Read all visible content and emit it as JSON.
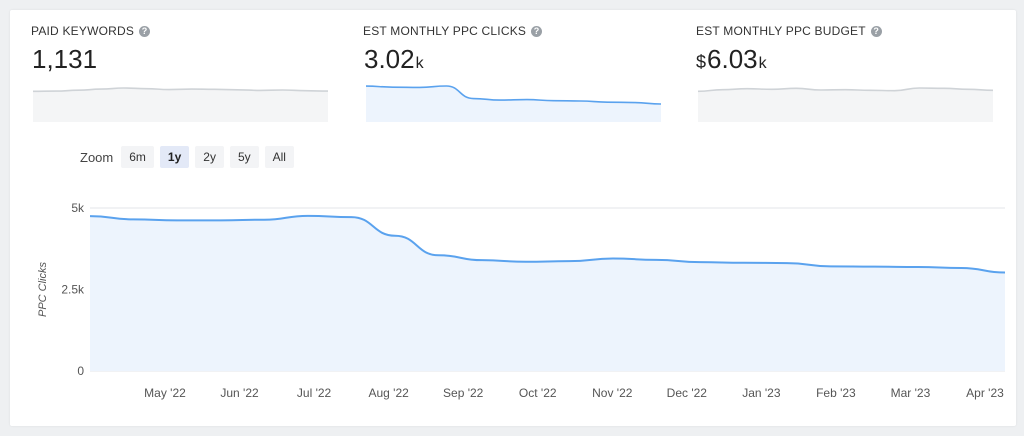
{
  "kpis": [
    {
      "label": "PAID KEYWORDS",
      "prefix": "",
      "value": "1,131",
      "suffix": ""
    },
    {
      "label": "EST MONTHLY PPC CLICKS",
      "prefix": "",
      "value": "3.02",
      "suffix": "k"
    },
    {
      "label": "EST MONTHLY PPC BUDGET",
      "prefix": "$",
      "value": "6.03",
      "suffix": "k"
    }
  ],
  "help_glyph": "?",
  "zoom": {
    "label": "Zoom",
    "options": [
      "6m",
      "1y",
      "2y",
      "5y",
      "All"
    ],
    "selected": "1y"
  },
  "colors": {
    "accent": "#5aa2ee",
    "area_fill": "#edf4fd",
    "grid": "#e3e6ea",
    "spark_gray": "#cfd3d7",
    "spark_area": "#f4f5f6"
  },
  "chart_data": {
    "type": "area",
    "ylabel": "PPC Clicks",
    "yticks": [
      "0",
      "2.5k",
      "5k"
    ],
    "ylim": [
      0,
      5000
    ],
    "grid": true,
    "x_tick_labels": [
      "May '22",
      "Jun '22",
      "Jul '22",
      "Aug '22",
      "Sep '22",
      "Oct '22",
      "Nov '22",
      "Dec '22",
      "Jan '23",
      "Feb '23",
      "Mar '23",
      "Apr '23"
    ],
    "series": [
      {
        "values": [
          4750,
          4650,
          4620,
          4620,
          4640,
          4760,
          4720,
          4150,
          3550,
          3400,
          3350,
          3370,
          3450,
          3410,
          3340,
          3320,
          3310,
          3210,
          3200,
          3190,
          3160,
          3020
        ]
      }
    ],
    "sparklines": {
      "paid_keywords": [
        1130,
        1131,
        1135,
        1140,
        1145,
        1142,
        1138,
        1140,
        1139,
        1137,
        1134,
        1136,
        1133,
        1131
      ],
      "ppc_clicks": [
        4750,
        4650,
        4620,
        4760,
        3550,
        3400,
        3450,
        3340,
        3310,
        3200,
        3160,
        3020
      ],
      "ppc_budget": [
        6000,
        6050,
        6080,
        6060,
        6090,
        6040,
        6050,
        6030,
        6020,
        6100,
        6090,
        6060,
        6030
      ]
    }
  }
}
